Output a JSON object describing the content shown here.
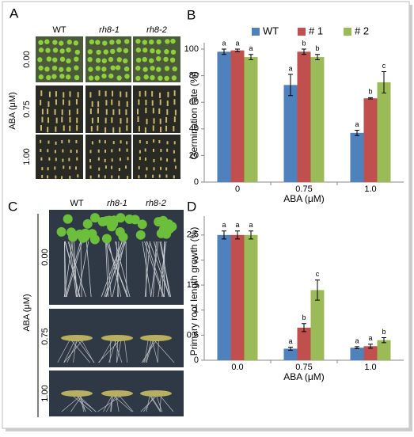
{
  "panel_a": {
    "label": "A",
    "columns": [
      "WT",
      "rh8-1",
      "rh8-2"
    ],
    "y_label": "ABA (μM)",
    "rows": [
      "0.00",
      "0.75",
      "1.00"
    ]
  },
  "panel_c": {
    "label": "C",
    "columns": [
      "WT",
      "rh8-1",
      "rh8-2"
    ],
    "y_label": "ABA (μM)",
    "rows": [
      "0.00",
      "0.75",
      "1.00"
    ]
  },
  "chart_data": [
    {
      "type": "bar",
      "label": "B",
      "y_label": "Germination rate (%)",
      "x_label": "ABA (μM)",
      "categories": [
        "0",
        "0.75",
        "1.0"
      ],
      "legend": "top",
      "ylim": [
        0,
        100
      ],
      "yticks": [
        0,
        20,
        40,
        60,
        80,
        100
      ],
      "series": [
        {
          "name": "WT",
          "color": "#4f81bd",
          "values": [
            98,
            73,
            37
          ],
          "errors": [
            2,
            8,
            2
          ],
          "letters": [
            "a",
            "a",
            "a"
          ]
        },
        {
          "name": "# 1",
          "color": "#c0504d",
          "values": [
            99,
            98,
            63
          ],
          "errors": [
            1,
            2,
            0.5
          ],
          "letters": [
            "a",
            "b",
            "b"
          ]
        },
        {
          "name": "# 2",
          "color": "#9bbb59",
          "values": [
            94,
            94,
            75
          ],
          "errors": [
            2,
            2,
            8
          ],
          "letters": [
            "a",
            "b",
            "c"
          ]
        }
      ]
    },
    {
      "type": "bar",
      "label": "D",
      "y_label": "Primary root length growth (%)",
      "x_label": "ABA (μM)",
      "categories": [
        "0.0",
        "0.75",
        "1.0"
      ],
      "ylim": [
        0,
        2.75
      ],
      "yticks": [
        0,
        0.5,
        1,
        1.5,
        2,
        2.5
      ],
      "series": [
        {
          "name": "WT",
          "color": "#4f81bd",
          "values": [
            2.5,
            0.23,
            0.25
          ],
          "errors": [
            0.08,
            0.03,
            0.02
          ],
          "letters": [
            "a",
            "a",
            "a"
          ]
        },
        {
          "name": "# 1",
          "color": "#c0504d",
          "values": [
            2.5,
            0.65,
            0.28
          ],
          "errors": [
            0.08,
            0.08,
            0.04
          ],
          "letters": [
            "a",
            "b",
            "a"
          ]
        },
        {
          "name": "# 2",
          "color": "#9bbb59",
          "values": [
            2.5,
            1.4,
            0.4
          ],
          "errors": [
            0.08,
            0.2,
            0.05
          ],
          "letters": [
            "a",
            "c",
            "b"
          ]
        }
      ]
    }
  ]
}
